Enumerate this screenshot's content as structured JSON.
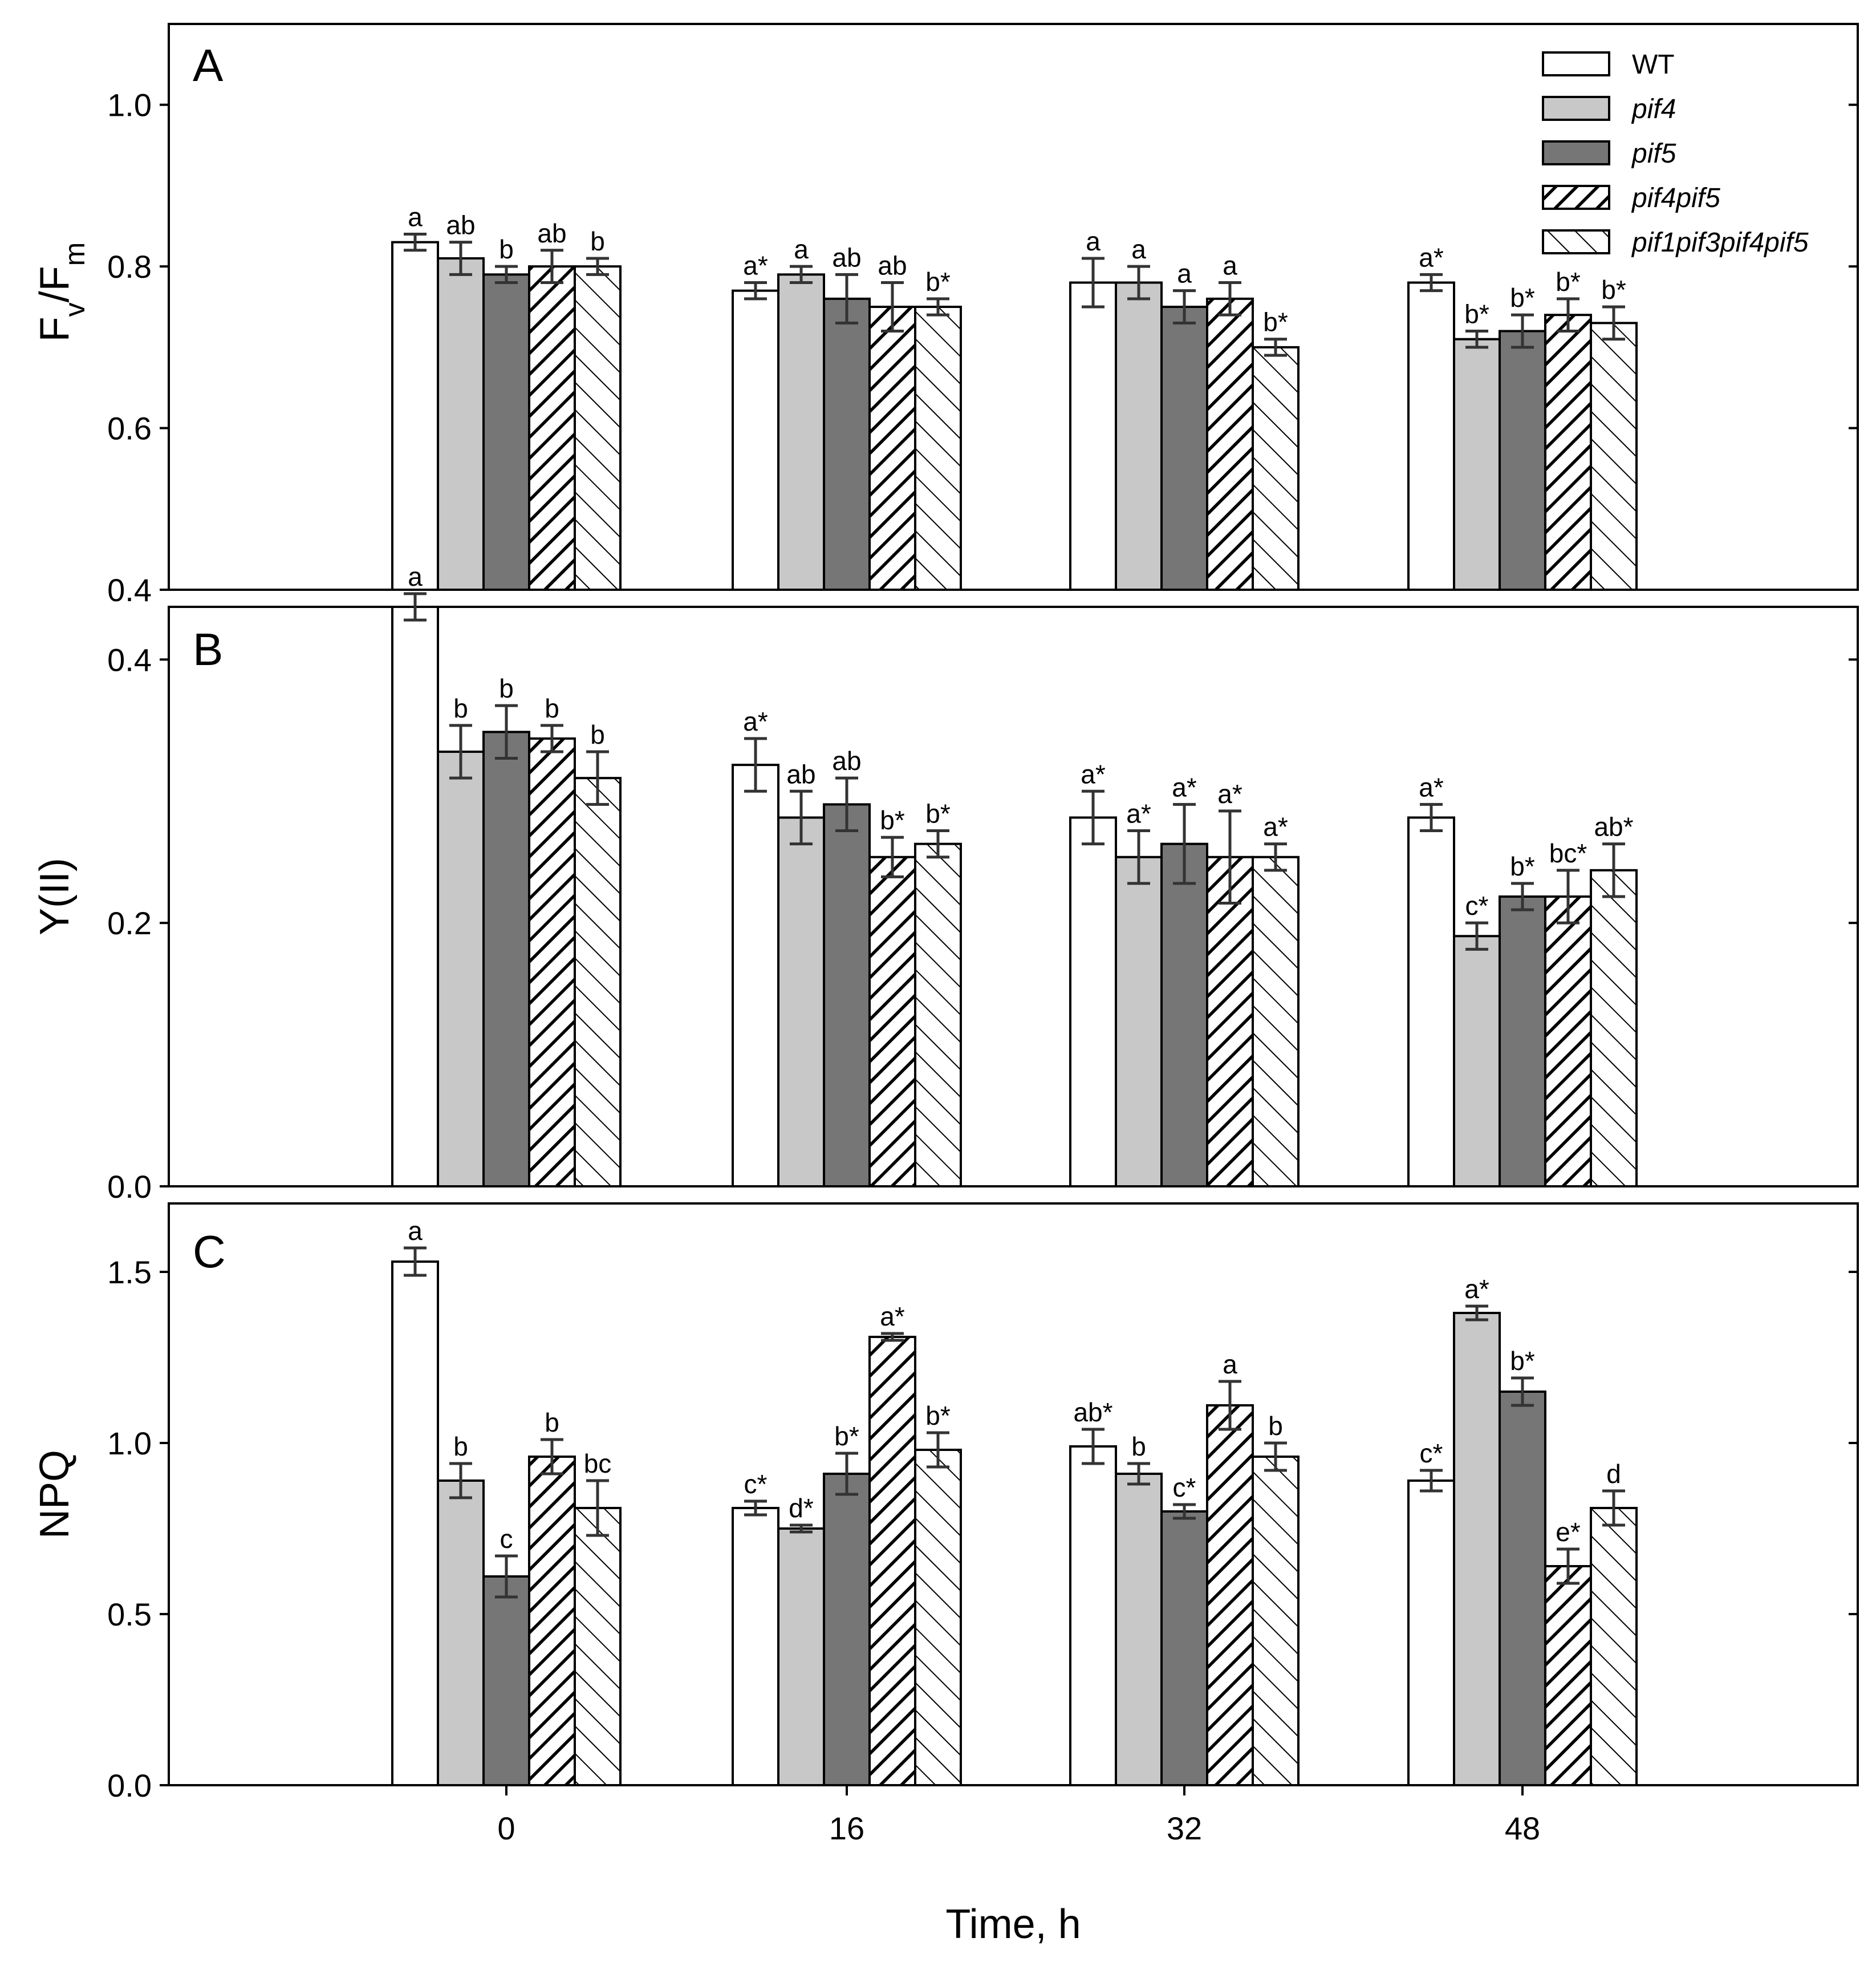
{
  "chart_data": [
    {
      "type": "bar",
      "panel": "A",
      "ylabel_main": "F",
      "ylabel_sub1": "v",
      "ylabel_mid": "/F",
      "ylabel_sub2": "m",
      "ylim": [
        0.4,
        1.1
      ],
      "yticks": [
        "0.4",
        "0.6",
        "0.8",
        "1.0"
      ],
      "categories": [
        "0",
        "16",
        "32",
        "48"
      ],
      "series": [
        {
          "name": "WT",
          "values": [
            0.83,
            0.77,
            0.78,
            0.78
          ],
          "errors": [
            0.01,
            0.01,
            0.03,
            0.01
          ],
          "letters": [
            "a",
            "a*",
            "a",
            "a*"
          ]
        },
        {
          "name": "pif4",
          "values": [
            0.81,
            0.79,
            0.78,
            0.71
          ],
          "errors": [
            0.02,
            0.01,
            0.02,
            0.01
          ],
          "letters": [
            "ab",
            "a",
            "a",
            "b*"
          ]
        },
        {
          "name": "pif5",
          "values": [
            0.79,
            0.76,
            0.75,
            0.72
          ],
          "errors": [
            0.01,
            0.03,
            0.02,
            0.02
          ],
          "letters": [
            "b",
            "ab",
            "a",
            "b*"
          ]
        },
        {
          "name": "pif4pif5",
          "values": [
            0.8,
            0.75,
            0.76,
            0.74
          ],
          "errors": [
            0.02,
            0.03,
            0.02,
            0.02
          ],
          "letters": [
            "ab",
            "ab",
            "a",
            "b*"
          ]
        },
        {
          "name": "pif1pif3pif4pif5",
          "values": [
            0.8,
            0.75,
            0.7,
            0.73
          ],
          "errors": [
            0.01,
            0.01,
            0.01,
            0.02
          ],
          "letters": [
            "b",
            "b*",
            "b*",
            "b*"
          ]
        }
      ]
    },
    {
      "type": "bar",
      "panel": "B",
      "ylabel": "Y(II)",
      "ylim": [
        0.0,
        0.44
      ],
      "yticks": [
        "0.0",
        "0.2",
        "0.4"
      ],
      "categories": [
        "0",
        "16",
        "32",
        "48"
      ],
      "series": [
        {
          "name": "WT",
          "values": [
            0.44,
            0.32,
            0.28,
            0.28
          ],
          "errors": [
            0.01,
            0.02,
            0.02,
            0.01
          ],
          "letters": [
            "a",
            "a*",
            "a*",
            "a*"
          ]
        },
        {
          "name": "pif4",
          "values": [
            0.33,
            0.28,
            0.25,
            0.19
          ],
          "errors": [
            0.02,
            0.02,
            0.02,
            0.01
          ],
          "letters": [
            "b",
            "ab",
            "a*",
            "c*"
          ]
        },
        {
          "name": "pif5",
          "values": [
            0.345,
            0.29,
            0.26,
            0.22
          ],
          "errors": [
            0.02,
            0.02,
            0.03,
            0.01
          ],
          "letters": [
            "b",
            "ab",
            "a*",
            "b*"
          ]
        },
        {
          "name": "pif4pif5",
          "values": [
            0.34,
            0.25,
            0.25,
            0.22
          ],
          "errors": [
            0.01,
            0.015,
            0.035,
            0.02
          ],
          "letters": [
            "b",
            "b*",
            "a*",
            "bc*"
          ]
        },
        {
          "name": "pif1pif3pif4pif5",
          "values": [
            0.31,
            0.26,
            0.25,
            0.24
          ],
          "errors": [
            0.02,
            0.01,
            0.01,
            0.02
          ],
          "letters": [
            "b",
            "b*",
            "a*",
            "ab*"
          ]
        }
      ]
    },
    {
      "type": "bar",
      "panel": "C",
      "ylabel": "NPQ",
      "ylim": [
        0.0,
        1.7
      ],
      "yticks": [
        "0.0",
        "0.5",
        "1.0",
        "1.5"
      ],
      "categories": [
        "0",
        "16",
        "32",
        "48"
      ],
      "series": [
        {
          "name": "WT",
          "values": [
            1.53,
            0.81,
            0.99,
            0.89
          ],
          "errors": [
            0.04,
            0.02,
            0.05,
            0.03
          ],
          "letters": [
            "a",
            "c*",
            "ab*",
            "c*"
          ]
        },
        {
          "name": "pif4",
          "values": [
            0.89,
            0.75,
            0.91,
            1.38
          ],
          "errors": [
            0.05,
            0.01,
            0.03,
            0.02
          ],
          "letters": [
            "b",
            "d*",
            "b",
            "a*"
          ]
        },
        {
          "name": "pif5",
          "values": [
            0.61,
            0.91,
            0.8,
            1.15
          ],
          "errors": [
            0.06,
            0.06,
            0.02,
            0.04
          ],
          "letters": [
            "c",
            "b*",
            "c*",
            "b*"
          ]
        },
        {
          "name": "pif4pif5",
          "values": [
            0.96,
            1.31,
            1.11,
            0.64
          ],
          "errors": [
            0.05,
            0.01,
            0.07,
            0.05
          ],
          "letters": [
            "b",
            "a*",
            "a",
            "e*"
          ]
        },
        {
          "name": "pif1pif3pif4pif5",
          "values": [
            0.81,
            0.98,
            0.96,
            0.81
          ],
          "errors": [
            0.08,
            0.05,
            0.04,
            0.05
          ],
          "letters": [
            "bc",
            "b*",
            "b",
            "d"
          ]
        }
      ]
    }
  ],
  "legend": {
    "placement": "top-right",
    "entries": [
      "WT",
      "pif4",
      "pif5",
      "pif4pif5",
      "pif1pif3pif4pif5"
    ]
  },
  "xlabel": "Time, h",
  "colors": {
    "WT": "#ffffff",
    "pif4": "#c8c8c8",
    "pif5": "#767676",
    "pif4pif5": "hatch-dense",
    "pif1pif3pif4pif5": "hatch-sparse"
  }
}
